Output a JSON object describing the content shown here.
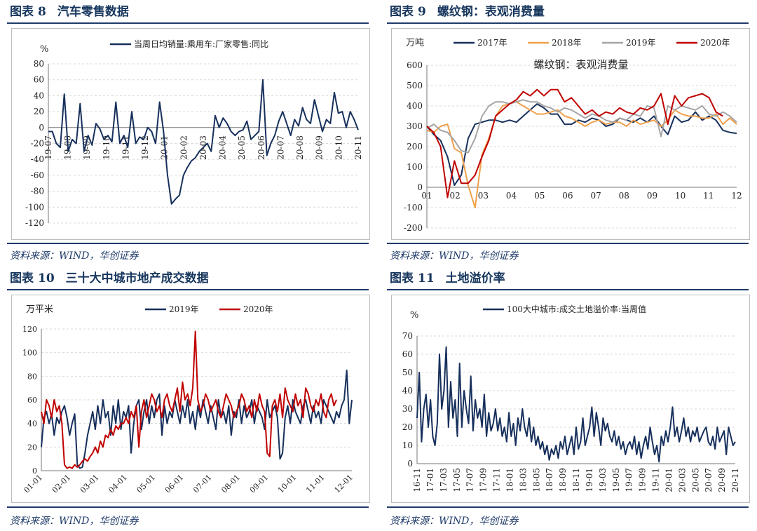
{
  "panels": [
    {
      "id": "p8",
      "title_prefix": "图表",
      "number": "8",
      "title": "汽车零售数据",
      "source": "资料来源：WIND，华创证券"
    },
    {
      "id": "p9",
      "title_prefix": "图表",
      "number": "9",
      "title": "螺纹钢：表观消费量",
      "source": "资料来源：WIND，华创证券"
    },
    {
      "id": "p10",
      "title_prefix": "图表",
      "number": "10",
      "title": "三十大中城市地产成交数据",
      "source": "资料来源：WIND，华创证券"
    },
    {
      "id": "p11",
      "title_prefix": "图表",
      "number": "11",
      "title": "土地溢价率",
      "source": "资料来源：WIND，华创证券"
    }
  ],
  "chart_data": [
    {
      "type": "line",
      "unit_label": "%",
      "ylim": [
        -120,
        80
      ],
      "yticks": [
        -120,
        -100,
        -80,
        -60,
        -40,
        -20,
        0,
        20,
        40,
        60,
        80
      ],
      "xticks": [
        "19-07",
        "19-08",
        "19-09",
        "19-10",
        "19-11",
        "19-12",
        "20-01",
        "20-02",
        "20-03",
        "20-04",
        "20-05",
        "20-06",
        "20-07",
        "20-08",
        "20-09",
        "20-10",
        "20-11"
      ],
      "grid": true,
      "legend_position": "top",
      "series": [
        {
          "name": "当周日均销量:乘用车:厂家零售:同比",
          "color": "#17305c",
          "values": [
            -5,
            -5,
            -20,
            -25,
            42,
            -30,
            -15,
            -20,
            30,
            -30,
            -10,
            -22,
            5,
            -2,
            -15,
            -10,
            -18,
            32,
            -20,
            -10,
            -25,
            20,
            -20,
            -12,
            -15,
            0,
            -5,
            -20,
            32,
            -5,
            -60,
            -96,
            -90,
            -85,
            -60,
            -50,
            -42,
            -38,
            -30,
            -25,
            -20,
            -30,
            15,
            0,
            12,
            5,
            -5,
            -10,
            -5,
            -3,
            8,
            -15,
            -10,
            -5,
            60,
            -35,
            -20,
            -10,
            8,
            20,
            5,
            -10,
            10,
            2,
            25,
            10,
            5,
            35,
            15,
            -5,
            10,
            5,
            44,
            18,
            20,
            0,
            20,
            10,
            -3
          ]
        }
      ]
    },
    {
      "type": "line",
      "title": "螺纹钢：表观消费量",
      "unit_label": "万吨",
      "ylim": [
        -200,
        600
      ],
      "yticks": [
        -200,
        -100,
        0,
        100,
        200,
        300,
        400,
        500,
        600
      ],
      "xticks": [
        "01",
        "02",
        "03",
        "04",
        "05",
        "06",
        "07",
        "08",
        "09",
        "10",
        "11",
        "12"
      ],
      "grid": true,
      "legend_position": "top",
      "series": [
        {
          "name": "2017年",
          "color": "#17305c",
          "values": [
            300,
            260,
            230,
            150,
            10,
            60,
            240,
            310,
            320,
            330,
            330,
            320,
            330,
            320,
            350,
            380,
            410,
            390,
            360,
            360,
            310,
            310,
            330,
            320,
            340,
            330,
            300,
            310,
            340,
            330,
            320,
            340,
            320,
            350,
            300,
            260,
            350,
            320,
            330,
            370,
            330,
            350,
            330,
            280,
            270,
            265
          ]
        },
        {
          "name": "2018年",
          "color": "#f0a04b",
          "values": [
            280,
            270,
            300,
            310,
            190,
            170,
            10,
            -100,
            160,
            240,
            350,
            400,
            410,
            420,
            400,
            380,
            360,
            360,
            370,
            380,
            350,
            340,
            320,
            300,
            320,
            330,
            310,
            320,
            320,
            300,
            330,
            310,
            320,
            330,
            300,
            330,
            380,
            360,
            350,
            350,
            340,
            340,
            360,
            310,
            340,
            310
          ]
        },
        {
          "name": "2019年",
          "color": "#a5a5a5",
          "values": [
            290,
            310,
            280,
            270,
            230,
            180,
            170,
            240,
            350,
            400,
            420,
            420,
            410,
            420,
            430,
            420,
            420,
            400,
            390,
            370,
            390,
            380,
            360,
            340,
            360,
            350,
            330,
            320,
            340,
            330,
            360,
            350,
            400,
            390,
            250,
            400,
            380,
            400,
            390,
            380,
            400,
            360,
            350,
            370,
            350,
            320
          ]
        },
        {
          "name": "2020年",
          "color": "#c00000",
          "values": [
            300,
            270,
            200,
            -50,
            130,
            20,
            20,
            60,
            150,
            230,
            350,
            380,
            410,
            430,
            470,
            450,
            480,
            450,
            480,
            480,
            420,
            440,
            400,
            360,
            380,
            350,
            370,
            360,
            390,
            370,
            360,
            390,
            380,
            400,
            460,
            310,
            450,
            400,
            440,
            450,
            460,
            440,
            370,
            350
          ]
        }
      ]
    },
    {
      "type": "line",
      "unit_label": "万平米",
      "ylim": [
        0,
        120
      ],
      "yticks": [
        0,
        20,
        40,
        60,
        80,
        100,
        120
      ],
      "xticks": [
        "01-01",
        "02-01",
        "03-01",
        "04-01",
        "05-01",
        "06-01",
        "07-01",
        "08-01",
        "09-01",
        "10-01",
        "11-01",
        "12-01"
      ],
      "grid": true,
      "legend_position": "top",
      "series": [
        {
          "name": "2019年",
          "color": "#17305c",
          "values": [
            20,
            45,
            50,
            40,
            48,
            30,
            45,
            40,
            50,
            55,
            45,
            30,
            40,
            48,
            5,
            2,
            3,
            15,
            30,
            40,
            50,
            35,
            55,
            40,
            60,
            45,
            50,
            30,
            55,
            40,
            60,
            35,
            50,
            45,
            55,
            15,
            40,
            55,
            60,
            35,
            50,
            60,
            40,
            55,
            45,
            60,
            65,
            30,
            55,
            40,
            50,
            45,
            60,
            50,
            40,
            55,
            45,
            60,
            40,
            50,
            35,
            55,
            45,
            60,
            50,
            40,
            55,
            45,
            35,
            60,
            45,
            50,
            40,
            55,
            30,
            50,
            45,
            60,
            40,
            55,
            45,
            50,
            60,
            40,
            55,
            50,
            45,
            35,
            60,
            45,
            50,
            55,
            45,
            10,
            15,
            45,
            55,
            40,
            60,
            50,
            45,
            40,
            55,
            60,
            50,
            40,
            55,
            45,
            50,
            40,
            60,
            55,
            50,
            45,
            40,
            50,
            45,
            55,
            60,
            85,
            40,
            60
          ]
        },
        {
          "name": "2020年",
          "color": "#c00000",
          "values": [
            50,
            40,
            60,
            55,
            45,
            60,
            50,
            55,
            40,
            5,
            2,
            3,
            2,
            5,
            3,
            5,
            8,
            10,
            8,
            12,
            15,
            20,
            15,
            25,
            20,
            30,
            28,
            35,
            30,
            38,
            35,
            40,
            40,
            45,
            40,
            50,
            45,
            55,
            20,
            50,
            60,
            45,
            55,
            65,
            60,
            50,
            55,
            45,
            60,
            65,
            55,
            50,
            60,
            70,
            50,
            75,
            60,
            65,
            55,
            70,
            118,
            60,
            50,
            55,
            65,
            60,
            50,
            55,
            60,
            50,
            45,
            55,
            65,
            60,
            55,
            45,
            50,
            55,
            65,
            60,
            50,
            55,
            45,
            60,
            50,
            65,
            55,
            50,
            15,
            12,
            55,
            60,
            50,
            65,
            45,
            70,
            60,
            55,
            50,
            65,
            55,
            60,
            45,
            70,
            65,
            55,
            50,
            60,
            55,
            65,
            50,
            45,
            60,
            65,
            55,
            60
          ]
        }
      ]
    },
    {
      "type": "line",
      "unit_label": "%",
      "ylim": [
        0,
        70
      ],
      "yticks": [
        0,
        10,
        20,
        30,
        40,
        50,
        60,
        70
      ],
      "xticks": [
        "16-11",
        "17-01",
        "17-03",
        "17-05",
        "17-07",
        "17-09",
        "17-11",
        "18-01",
        "18-03",
        "18-05",
        "18-07",
        "18-09",
        "18-11",
        "19-01",
        "19-03",
        "19-05",
        "19-07",
        "19-09",
        "19-11",
        "20-01",
        "20-03",
        "20-05",
        "20-07",
        "20-09",
        "20-11"
      ],
      "grid": true,
      "legend_position": "top",
      "series": [
        {
          "name": "100大中城市:成交土地溢价率:当周值",
          "color": "#17305c",
          "values": [
            25,
            50,
            12,
            30,
            38,
            20,
            35,
            15,
            10,
            22,
            60,
            30,
            40,
            64,
            20,
            45,
            25,
            35,
            15,
            55,
            20,
            40,
            30,
            22,
            48,
            18,
            35,
            25,
            30,
            20,
            38,
            15,
            28,
            18,
            22,
            30,
            18,
            25,
            15,
            20,
            12,
            28,
            15,
            22,
            10,
            25,
            18,
            30,
            20,
            15,
            25,
            12,
            20,
            10,
            15,
            8,
            12,
            5,
            10,
            2,
            8,
            5,
            10,
            3,
            12,
            8,
            15,
            5,
            10,
            15,
            5,
            20,
            8,
            12,
            25,
            10,
            15,
            20,
            31,
            15,
            28,
            20,
            10,
            25,
            18,
            22,
            15,
            12,
            18,
            10,
            15,
            8,
            12,
            5,
            10,
            12,
            8,
            15,
            5,
            12,
            3,
            10,
            15,
            8,
            20,
            12,
            5,
            10,
            1,
            15,
            10,
            18,
            12,
            20,
            31,
            15,
            20,
            12,
            18,
            25,
            15,
            20,
            12,
            18,
            15,
            20,
            12,
            15,
            18,
            20,
            12,
            10,
            15,
            8,
            20,
            12,
            15,
            18,
            5,
            20,
            15,
            10,
            12
          ]
        }
      ]
    }
  ]
}
